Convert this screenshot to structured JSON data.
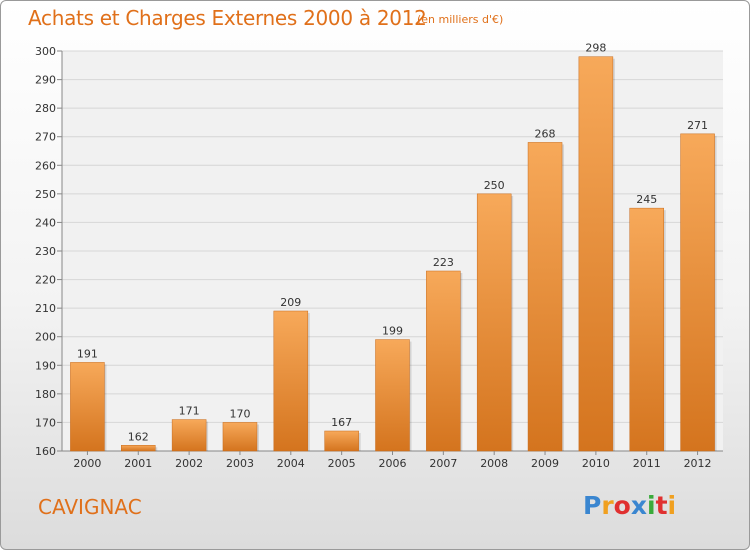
{
  "header": {
    "title": "Achats et Charges Externes 2000 à 2012",
    "subtitle": "(en milliers d'€)"
  },
  "footer": {
    "place": "CAVIGNAC",
    "logo": "Proxiti",
    "logo_colors": [
      "#3a86d0",
      "#f0a020",
      "#e03030",
      "#3a86d0",
      "#3aaa3a",
      "#e03030",
      "#f0a020"
    ]
  },
  "colors": {
    "bar_light": "#f7a95a",
    "bar_dark": "#d4741e",
    "accent": "#e0701a"
  },
  "chart_data": {
    "type": "bar",
    "title": "Achats et Charges Externes 2000 à 2012",
    "subtitle": "(en milliers d'€)",
    "categories": [
      "2000",
      "2001",
      "2002",
      "2003",
      "2004",
      "2005",
      "2006",
      "2007",
      "2008",
      "2009",
      "2010",
      "2011",
      "2012"
    ],
    "values": [
      191,
      162,
      171,
      170,
      209,
      167,
      199,
      223,
      250,
      268,
      298,
      245,
      271
    ],
    "ylim": [
      160,
      300
    ],
    "yticks": [
      160,
      170,
      180,
      190,
      200,
      210,
      220,
      230,
      240,
      250,
      260,
      270,
      280,
      290,
      300
    ],
    "grid": true,
    "data_labels": true
  }
}
